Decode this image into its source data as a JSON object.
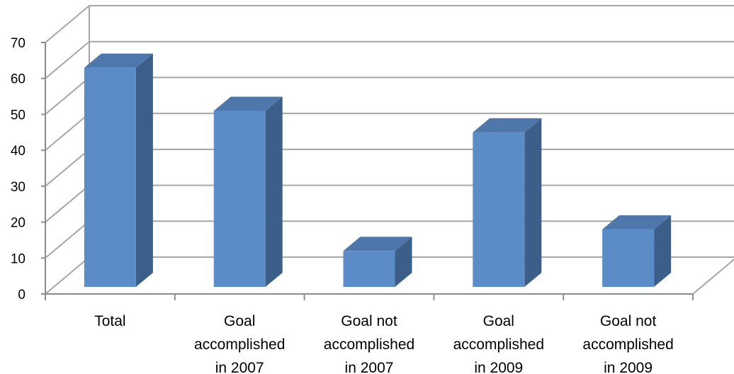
{
  "chart_data": {
    "type": "bar",
    "style": "3d-column",
    "categories": [
      [
        "Total"
      ],
      [
        "Goal",
        "accomplished",
        "in 2007"
      ],
      [
        "Goal not",
        "accomplished",
        "in 2007"
      ],
      [
        "Goal",
        "accomplished",
        "in 2009"
      ],
      [
        "Goal not",
        "accomplished",
        "in 2009"
      ]
    ],
    "values": [
      61,
      49,
      10,
      43,
      16
    ],
    "ylim": [
      0,
      70
    ],
    "yticks": [
      "0",
      "10",
      "20",
      "30",
      "40",
      "50",
      "60",
      "70"
    ],
    "title": "",
    "xlabel": "",
    "ylabel": "",
    "grid": true,
    "legend": "none",
    "colors": {
      "front": "#5B8CC7",
      "side": "#3C5F8A",
      "top": "#4E77AC",
      "grid": "#A6A6A6",
      "axis": "#8C8C8C"
    }
  }
}
